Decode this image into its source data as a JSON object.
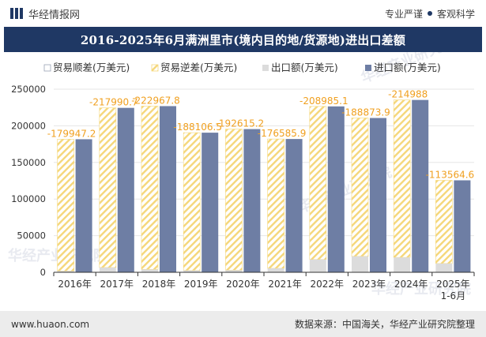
{
  "header": {
    "brand": "华经情报网",
    "tagline_left": "专业严谨",
    "tagline_right": "客观科学"
  },
  "footer": {
    "url": "www.huaon.com",
    "source": "数据来源：中国海关，华经产业研究院整理"
  },
  "watermark": "华经产业研究院",
  "colors": {
    "title_bg": "#1f3864",
    "surplus_face": "#ffffff",
    "deficit_hatch": "#f5d77a",
    "export": "#dcdcdc",
    "import": "#6e7ea4",
    "deficit_label": "#f0a020"
  },
  "chart_data": {
    "type": "bar",
    "title": "2016-2025年6月满洲里市(境内目的地/货源地)进出口差额",
    "categories": [
      "2016年",
      "2017年",
      "2018年",
      "2019年",
      "2020年",
      "2021年",
      "2022年",
      "2023年",
      "2024年",
      "2025年\n1-6月"
    ],
    "ylim": [
      0,
      250000
    ],
    "yticks": [
      0,
      50000,
      100000,
      150000,
      200000,
      250000
    ],
    "ytick_labels": [
      "0",
      "50000",
      "100000",
      "150000",
      "200000",
      "250000"
    ],
    "legend_position": "top",
    "series": [
      {
        "name": "贸易顺差(万美元)",
        "values": [
          0,
          0,
          0,
          0,
          0,
          0,
          0,
          0,
          0,
          0
        ]
      },
      {
        "name": "贸易逆差(万美元)",
        "values": [
          -179947.2,
          -217990.7,
          -222967.8,
          -188106.5,
          -192615.2,
          -176585.9,
          -208985.1,
          -188873.9,
          -214988,
          -113564.6
        ]
      },
      {
        "name": "出口额(万美元)",
        "values": [
          1700,
          6500,
          3900,
          2500,
          2900,
          5400,
          17500,
          21800,
          20300,
          12000
        ]
      },
      {
        "name": "进口额(万美元)",
        "values": [
          181647.2,
          224490.7,
          226867.8,
          190606.5,
          195515.2,
          181985.9,
          226485.1,
          210673.9,
          235288,
          125564.6
        ]
      }
    ],
    "deficit_labels": [
      "-179947.2",
      "-217990.7",
      "-222967.8",
      "-188106.5",
      "-192615.2",
      "-176585.9",
      "-208985.1",
      "-188873.9",
      "-214988",
      "-113564.6"
    ]
  }
}
